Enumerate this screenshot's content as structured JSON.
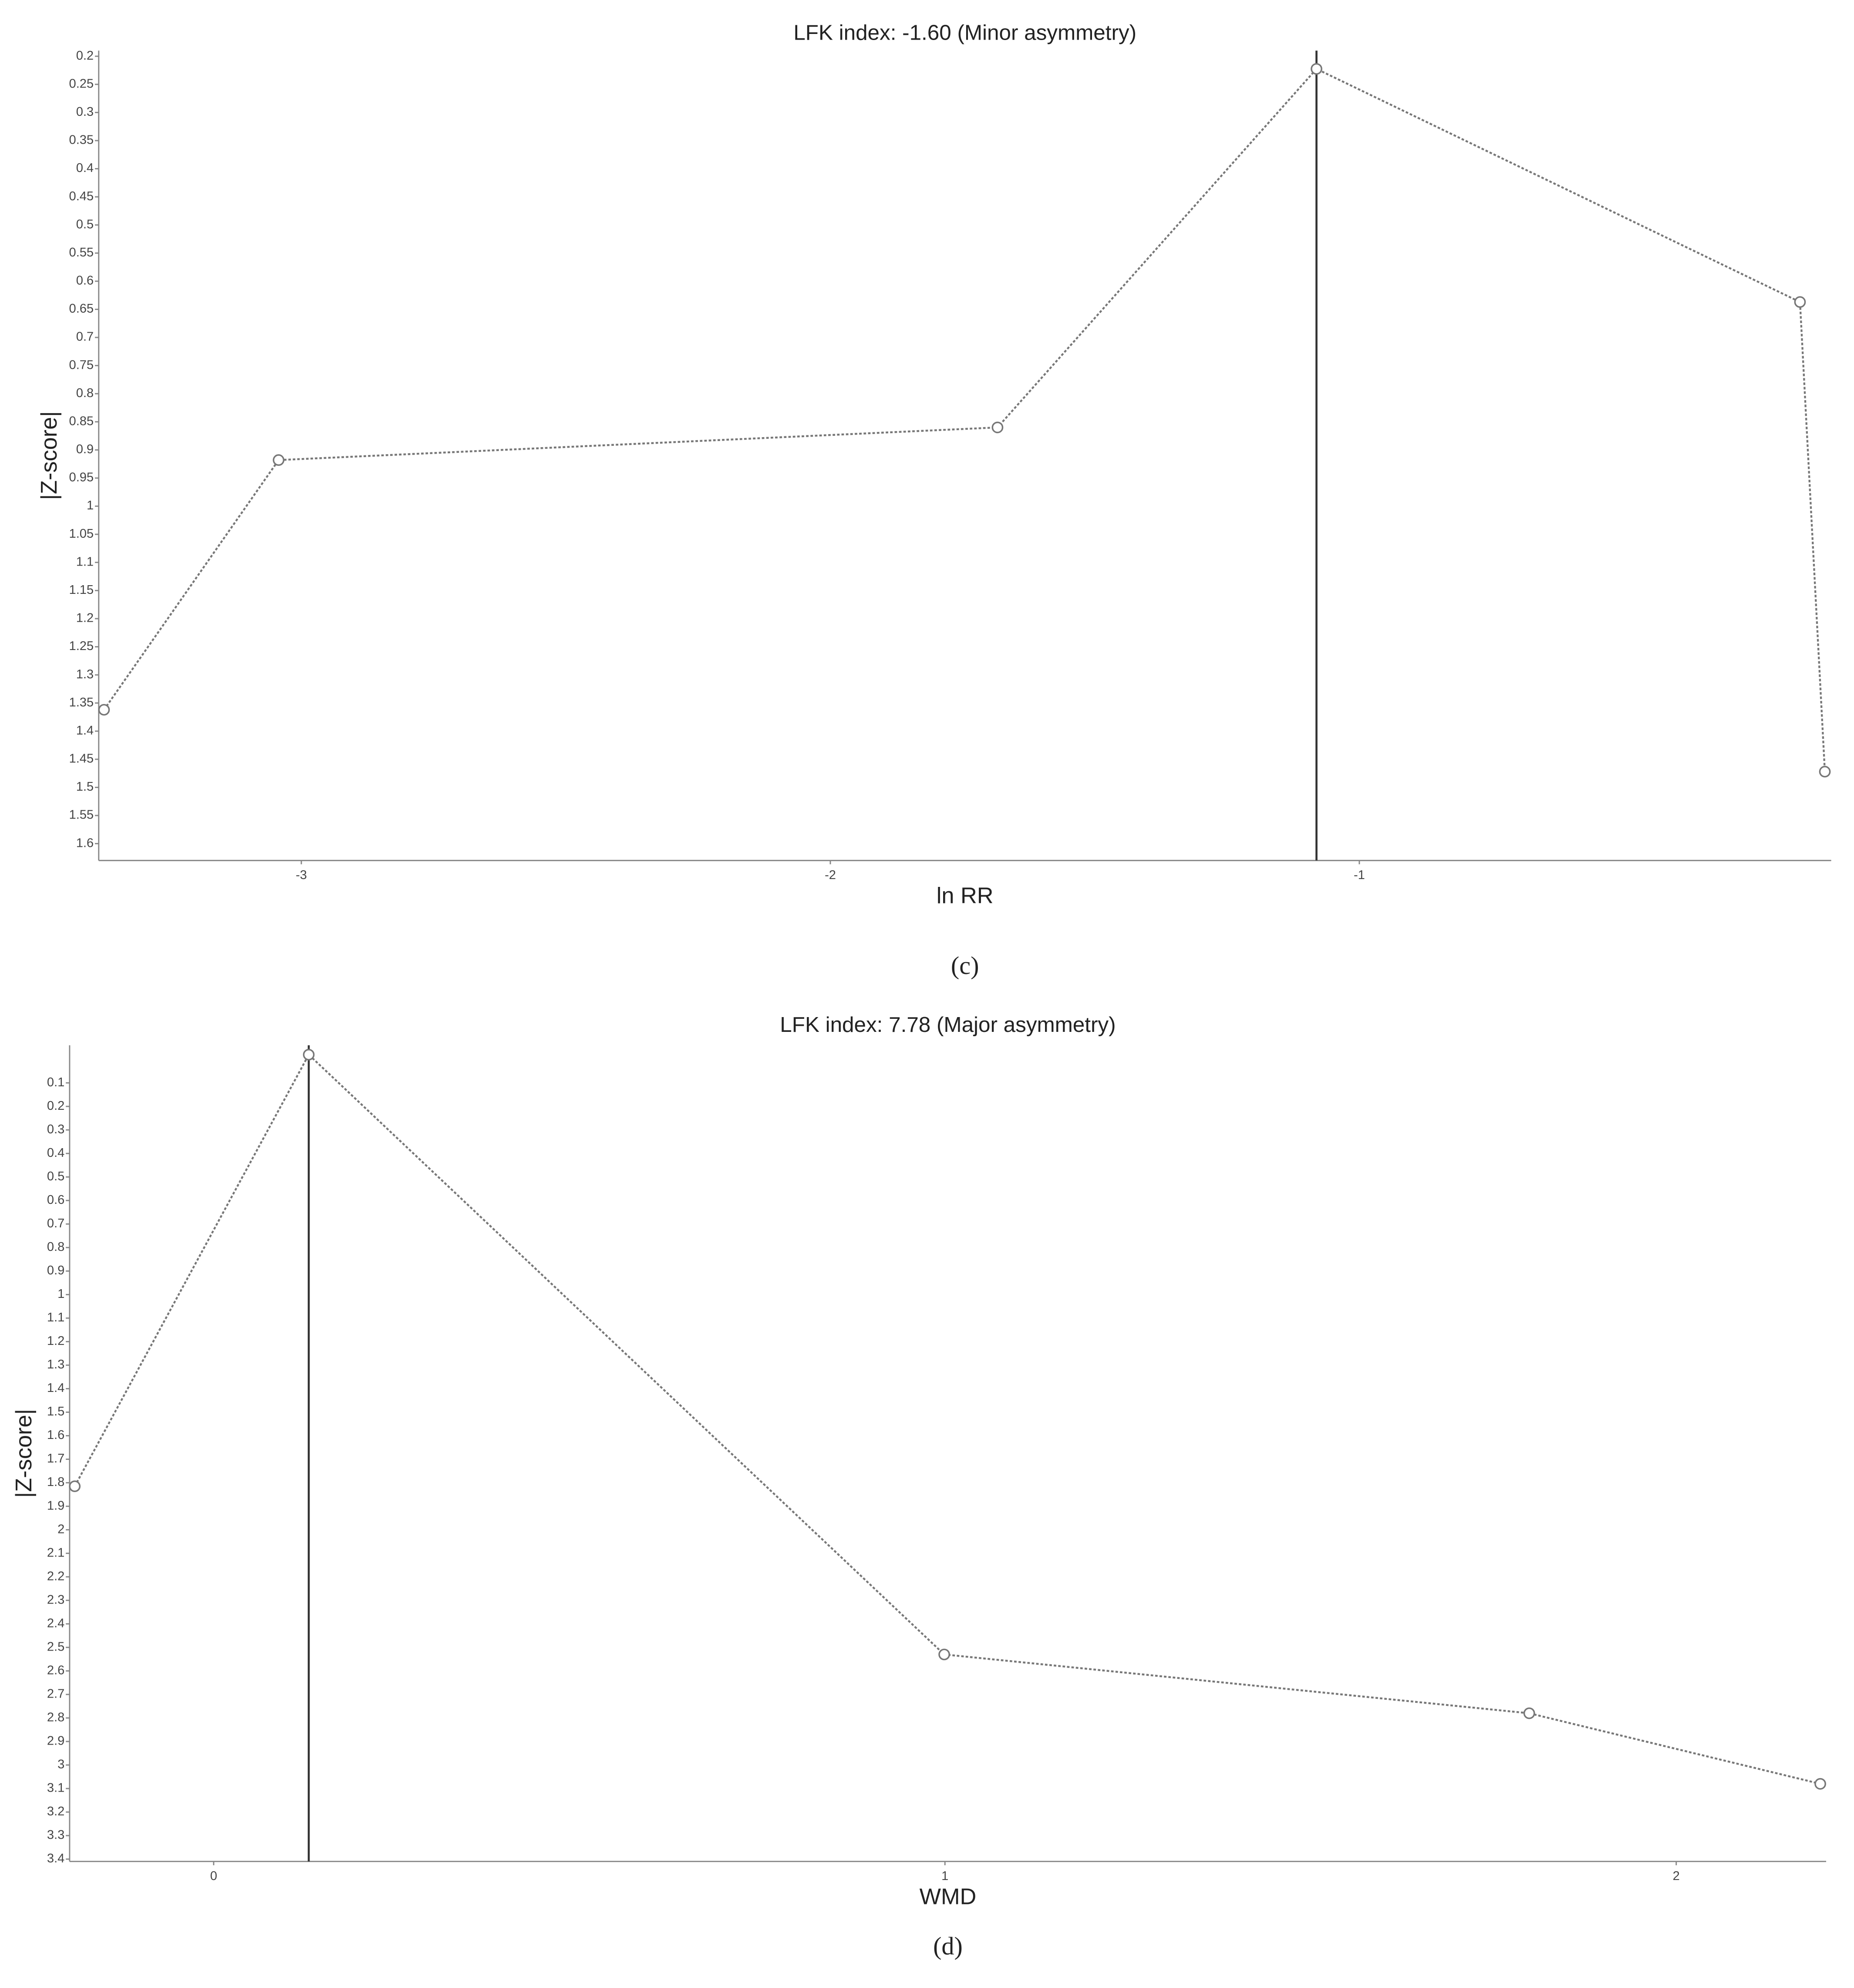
{
  "chart_data": [
    {
      "type": "line",
      "title": "LFK index: -1.60 (Minor asymmetry)",
      "x_label": "ln RR",
      "y_label": "|Z-score|",
      "caption": "(c)",
      "x": [
        -3.373,
        -3.043,
        -1.684,
        -1.081,
        -0.167,
        -0.12
      ],
      "series": [
        {
          "name": "|Z-score|",
          "color": "#777777",
          "values": [
            1.362,
            0.918,
            0.86,
            0.2225,
            0.637,
            1.472
          ]
        }
      ],
      "vline_x": -1.081,
      "xlim": [
        -3.383,
        -0.108
      ],
      "xticks": [
        -3,
        -2,
        -1
      ],
      "ylim": [
        0.19,
        1.63
      ],
      "y_inverted": true,
      "yticks": [
        0.2,
        0.25,
        0.3,
        0.35,
        0.4,
        0.45,
        0.5,
        0.55,
        0.6,
        0.65,
        0.7,
        0.75,
        0.8,
        0.85,
        0.9,
        0.95,
        1,
        1.05,
        1.1,
        1.15,
        1.2,
        1.25,
        1.3,
        1.35,
        1.4,
        1.45,
        1.5,
        1.55,
        1.6
      ]
    },
    {
      "type": "line",
      "title": "LFK index: 7.78 (Major asymmetry)",
      "x_label": "WMD",
      "y_label": "|Z-score|",
      "caption": "(d)",
      "x": [
        -0.19,
        0.13,
        0.999,
        1.799,
        2.197
      ],
      "series": [
        {
          "name": "|Z-score|",
          "color": "#777777",
          "values": [
            1.815,
            -0.02,
            2.53,
            2.78,
            3.08
          ]
        }
      ],
      "vline_x": 0.13,
      "xlim": [
        -0.197,
        2.205
      ],
      "xticks": [
        0,
        1,
        2
      ],
      "ylim": [
        -0.06,
        3.41
      ],
      "y_inverted": true,
      "yticks": [
        0.1,
        0.2,
        0.3,
        0.4,
        0.5,
        0.6,
        0.7,
        0.8,
        0.9,
        1,
        1.1,
        1.2,
        1.3,
        1.4,
        1.5,
        1.6,
        1.7,
        1.8,
        1.9,
        2,
        2.1,
        2.2,
        2.3,
        2.4,
        2.5,
        2.6,
        2.7,
        2.8,
        2.9,
        3,
        3.1,
        3.2,
        3.3,
        3.4
      ]
    }
  ]
}
